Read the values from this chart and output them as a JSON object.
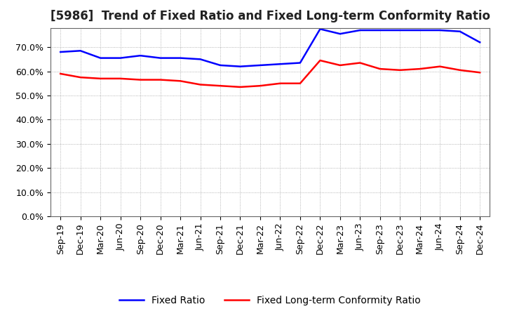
{
  "title": "[5986]  Trend of Fixed Ratio and Fixed Long-term Conformity Ratio",
  "x_labels": [
    "Sep-19",
    "Dec-19",
    "Mar-20",
    "Jun-20",
    "Sep-20",
    "Dec-20",
    "Mar-21",
    "Jun-21",
    "Sep-21",
    "Dec-21",
    "Mar-22",
    "Jun-22",
    "Sep-22",
    "Dec-22",
    "Mar-23",
    "Jun-23",
    "Sep-23",
    "Dec-23",
    "Mar-24",
    "Jun-24",
    "Sep-24",
    "Dec-24"
  ],
  "fixed_ratio": [
    68.0,
    68.5,
    65.5,
    65.5,
    66.5,
    65.5,
    65.5,
    65.0,
    62.5,
    62.0,
    62.5,
    63.0,
    63.5,
    77.5,
    75.5,
    77.0,
    77.0,
    77.0,
    77.0,
    77.0,
    76.5,
    72.0
  ],
  "fixed_lt_ratio": [
    59.0,
    57.5,
    57.0,
    57.0,
    56.5,
    56.5,
    56.0,
    54.5,
    54.0,
    53.5,
    54.0,
    55.0,
    55.0,
    64.5,
    62.5,
    63.5,
    61.0,
    60.5,
    61.0,
    62.0,
    60.5,
    59.5
  ],
  "fixed_ratio_color": "#0000FF",
  "fixed_lt_ratio_color": "#FF0000",
  "ylim": [
    0,
    78
  ],
  "yticks": [
    0,
    10,
    20,
    30,
    40,
    50,
    60,
    70
  ],
  "ytick_labels": [
    "0.0%",
    "10.0%",
    "20.0%",
    "30.0%",
    "40.0%",
    "50.0%",
    "60.0%",
    "70.0%"
  ],
  "background_color": "#FFFFFF",
  "plot_bg_color": "#FFFFFF",
  "grid_color": "#888888",
  "legend_fixed": "Fixed Ratio",
  "legend_lt": "Fixed Long-term Conformity Ratio",
  "title_fontsize": 12,
  "axis_fontsize": 9,
  "legend_fontsize": 10,
  "line_width": 1.8
}
